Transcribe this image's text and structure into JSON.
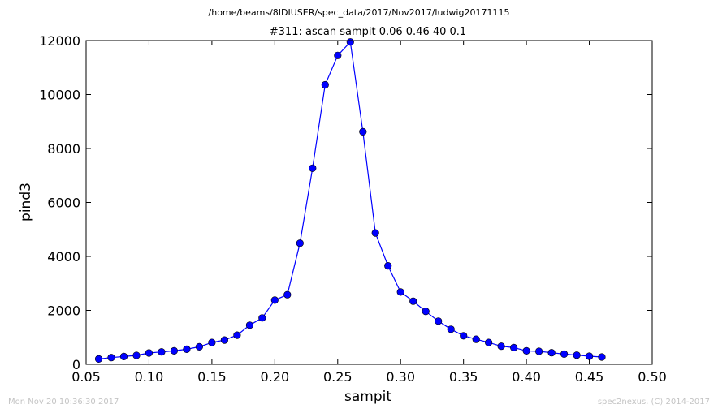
{
  "suptitle": "/home/beams/8IDIUSER/spec_data/2017/Nov2017/ludwig20171115",
  "footer": {
    "timestamp": "Mon Nov 20 10:36:30 2017",
    "credit": "spec2nexus, (C) 2014-2017"
  },
  "colors": {
    "line": "#0000ff",
    "marker": "#0000ff",
    "marker_edge": "#000000",
    "footer": "#c4c4c4"
  },
  "chart_data": {
    "type": "line",
    "title": "#311: ascan  sampit 0.06 0.46  40 0.1",
    "xlabel": "sampit",
    "ylabel": "pind3",
    "xlim": [
      0.05,
      0.5
    ],
    "ylim": [
      0,
      12000
    ],
    "xticks": [
      "0.05",
      "0.10",
      "0.15",
      "0.20",
      "0.25",
      "0.30",
      "0.35",
      "0.40",
      "0.45",
      "0.50"
    ],
    "yticks": [
      "0",
      "2000",
      "4000",
      "6000",
      "8000",
      "10000",
      "12000"
    ],
    "grid": false,
    "legend": "none",
    "series": [
      {
        "marker": "circle",
        "x": [
          0.06,
          0.07,
          0.08,
          0.09,
          0.1,
          0.11,
          0.12,
          0.13,
          0.14,
          0.15,
          0.16,
          0.17,
          0.18,
          0.19,
          0.2,
          0.21,
          0.22,
          0.23,
          0.24,
          0.25,
          0.26,
          0.27,
          0.28,
          0.29,
          0.3,
          0.31,
          0.32,
          0.33,
          0.34,
          0.35,
          0.36,
          0.37,
          0.38,
          0.39,
          0.4,
          0.41,
          0.42,
          0.43,
          0.44,
          0.45,
          0.46
        ],
        "y": [
          200,
          250,
          290,
          330,
          420,
          460,
          500,
          560,
          650,
          810,
          900,
          1080,
          1450,
          1720,
          2380,
          2580,
          4490,
          7270,
          10360,
          11450,
          11950,
          8620,
          4870,
          3650,
          2680,
          2340,
          1960,
          1600,
          1300,
          1060,
          930,
          810,
          670,
          620,
          500,
          480,
          430,
          380,
          340,
          300,
          270
        ]
      }
    ]
  }
}
